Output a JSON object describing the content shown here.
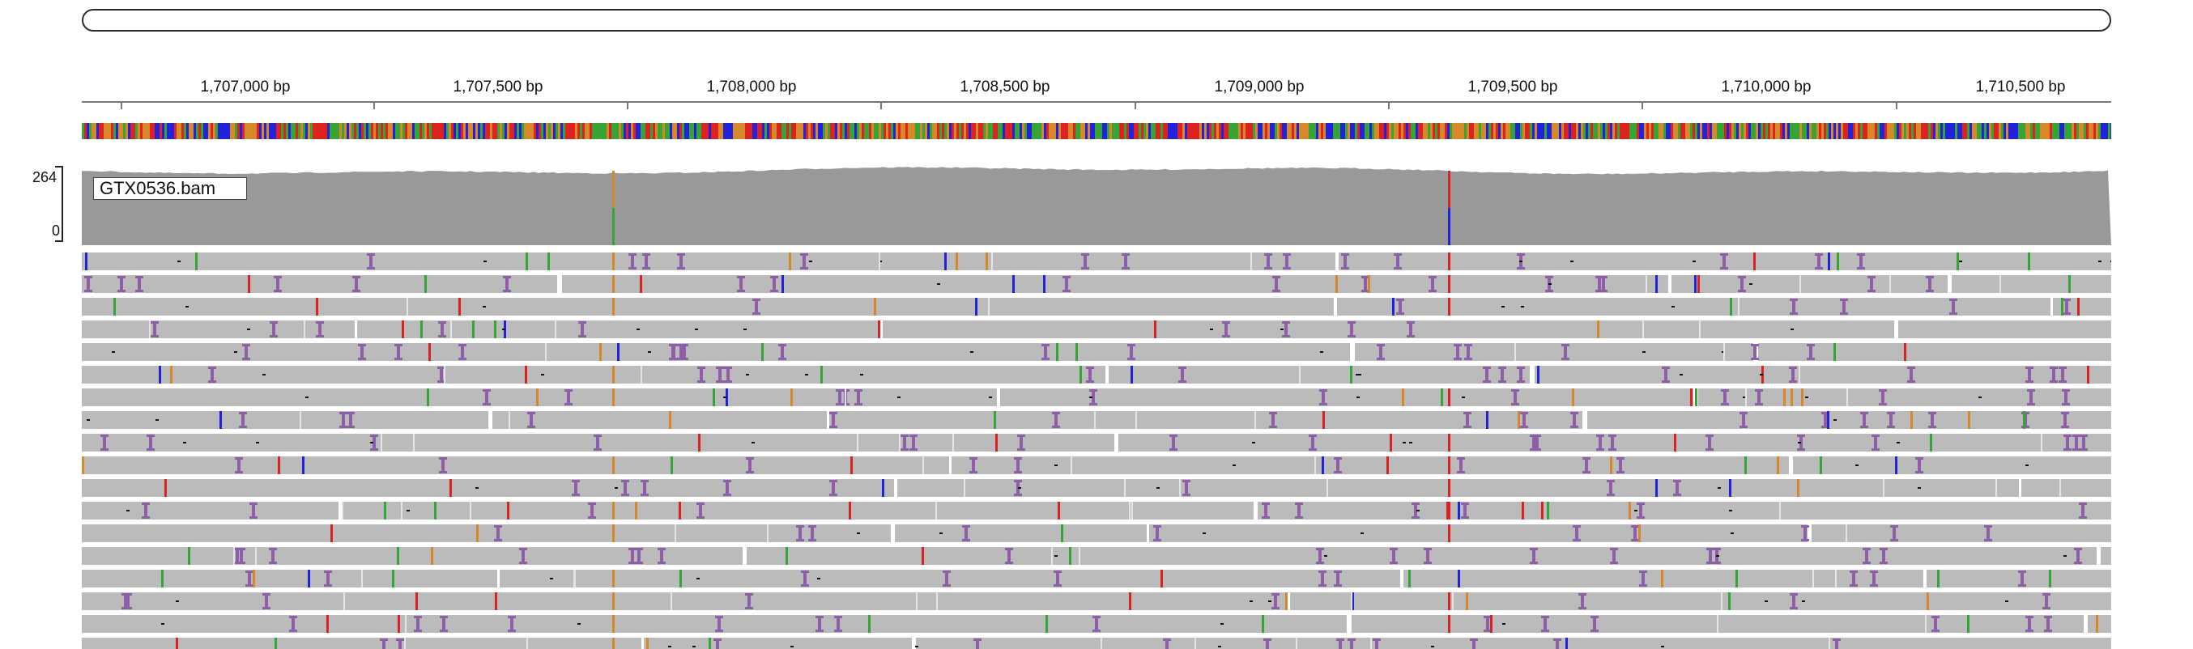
{
  "ruler": {
    "ticks": [
      {
        "label": "1,707,000 bp"
      },
      {
        "label": "1,707,500 bp"
      },
      {
        "label": "1,708,000 bp"
      },
      {
        "label": "1,708,500 bp"
      },
      {
        "label": "1,709,000 bp"
      },
      {
        "label": "1,709,500 bp"
      },
      {
        "label": "1,710,000 bp"
      },
      {
        "label": "1,710,500 bp"
      }
    ]
  },
  "coverage": {
    "scale_max": "264",
    "scale_min": "0",
    "color": "#999999"
  },
  "alignment_track": {
    "name": "GTX0536.bam",
    "read_color": "#bbbbbb",
    "insertion_color": "#8e5fa8"
  },
  "mismatch_colors": {
    "A": "#35a535",
    "C": "#2222dd",
    "G": "#d7892a",
    "T": "#dd2222"
  }
}
